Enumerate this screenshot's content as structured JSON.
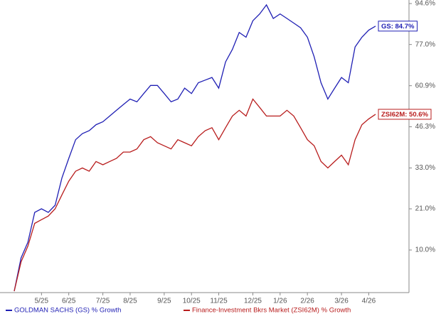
{
  "chart_data": {
    "type": "line",
    "yscale": "log_growth",
    "categories": [
      null,
      null,
      null,
      null,
      "5/25",
      null,
      null,
      null,
      "6/25",
      null,
      null,
      null,
      null,
      "7/25",
      null,
      null,
      null,
      "8/25",
      null,
      null,
      null,
      null,
      "9/25",
      null,
      null,
      null,
      "10/25",
      null,
      null,
      null,
      "11/25",
      null,
      null,
      null,
      null,
      "12/25",
      null,
      null,
      null,
      "1/26",
      null,
      null,
      null,
      "2/26",
      null,
      null,
      null,
      null,
      "3/26",
      null,
      null,
      null,
      "4/26",
      null
    ],
    "series": [
      {
        "name": "GOLDMAN SACHS (GS) % Growth",
        "color": "#1f1fb4",
        "values": [
          0,
          8,
          12,
          20,
          21,
          20,
          22,
          30,
          36,
          42,
          44,
          45,
          47,
          48,
          50,
          52,
          54,
          56,
          55,
          58,
          61,
          61,
          58,
          55,
          56,
          60,
          58,
          62,
          63,
          64,
          60,
          70,
          75,
          82,
          80,
          87,
          90,
          94,
          88,
          90,
          88,
          86,
          84,
          80,
          72,
          62,
          56,
          60,
          64,
          62,
          76,
          80,
          83,
          84.7
        ],
        "value_labels": [
          null,
          null,
          null,
          null,
          null,
          null,
          null,
          null,
          null,
          null,
          null,
          null,
          null,
          null,
          null,
          null,
          null,
          null,
          null,
          null,
          null,
          null,
          null,
          null,
          null,
          null,
          null,
          null,
          null,
          null,
          null,
          null,
          null,
          null,
          null,
          null,
          null,
          null,
          null,
          null,
          null,
          null,
          null,
          null,
          null,
          null,
          null,
          null,
          null,
          null,
          null,
          null,
          null,
          "GS: 84.7%"
        ]
      },
      {
        "name": "Finance-Investment Bkrs Market (ZSI62M) % Growth",
        "color": "#b81c1c",
        "values": [
          0,
          7,
          11,
          17,
          18,
          19,
          21,
          25,
          29,
          32,
          33,
          32,
          35,
          34,
          35,
          36,
          38,
          38,
          39,
          42,
          43,
          41,
          40,
          39,
          42,
          41,
          40,
          43,
          45,
          46,
          42,
          46,
          50,
          52,
          50,
          56,
          53,
          50,
          50,
          50,
          52,
          50,
          46,
          42,
          40,
          35,
          33,
          35,
          37,
          34,
          42,
          47,
          49,
          50.6
        ],
        "value_labels": [
          null,
          null,
          null,
          null,
          null,
          null,
          null,
          null,
          null,
          null,
          null,
          null,
          null,
          null,
          null,
          null,
          null,
          null,
          null,
          null,
          null,
          null,
          null,
          null,
          null,
          null,
          null,
          null,
          null,
          null,
          null,
          null,
          null,
          null,
          null,
          null,
          null,
          null,
          null,
          null,
          null,
          null,
          null,
          null,
          null,
          null,
          null,
          null,
          null,
          null,
          null,
          null,
          null,
          "ZSI62M: 50.6%"
        ]
      }
    ],
    "ylim": [
      0,
      94.6
    ],
    "yticks": [
      {
        "value": 10.0,
        "label": "10.0%"
      },
      {
        "value": 21.0,
        "label": "21.0%"
      },
      {
        "value": 33.0,
        "label": "33.0%"
      },
      {
        "value": 46.3,
        "label": "46.3%"
      },
      {
        "value": 60.9,
        "label": "60.9%"
      },
      {
        "value": 77.0,
        "label": "77.0%"
      },
      {
        "value": 94.6,
        "label": "94.6%"
      }
    ]
  }
}
